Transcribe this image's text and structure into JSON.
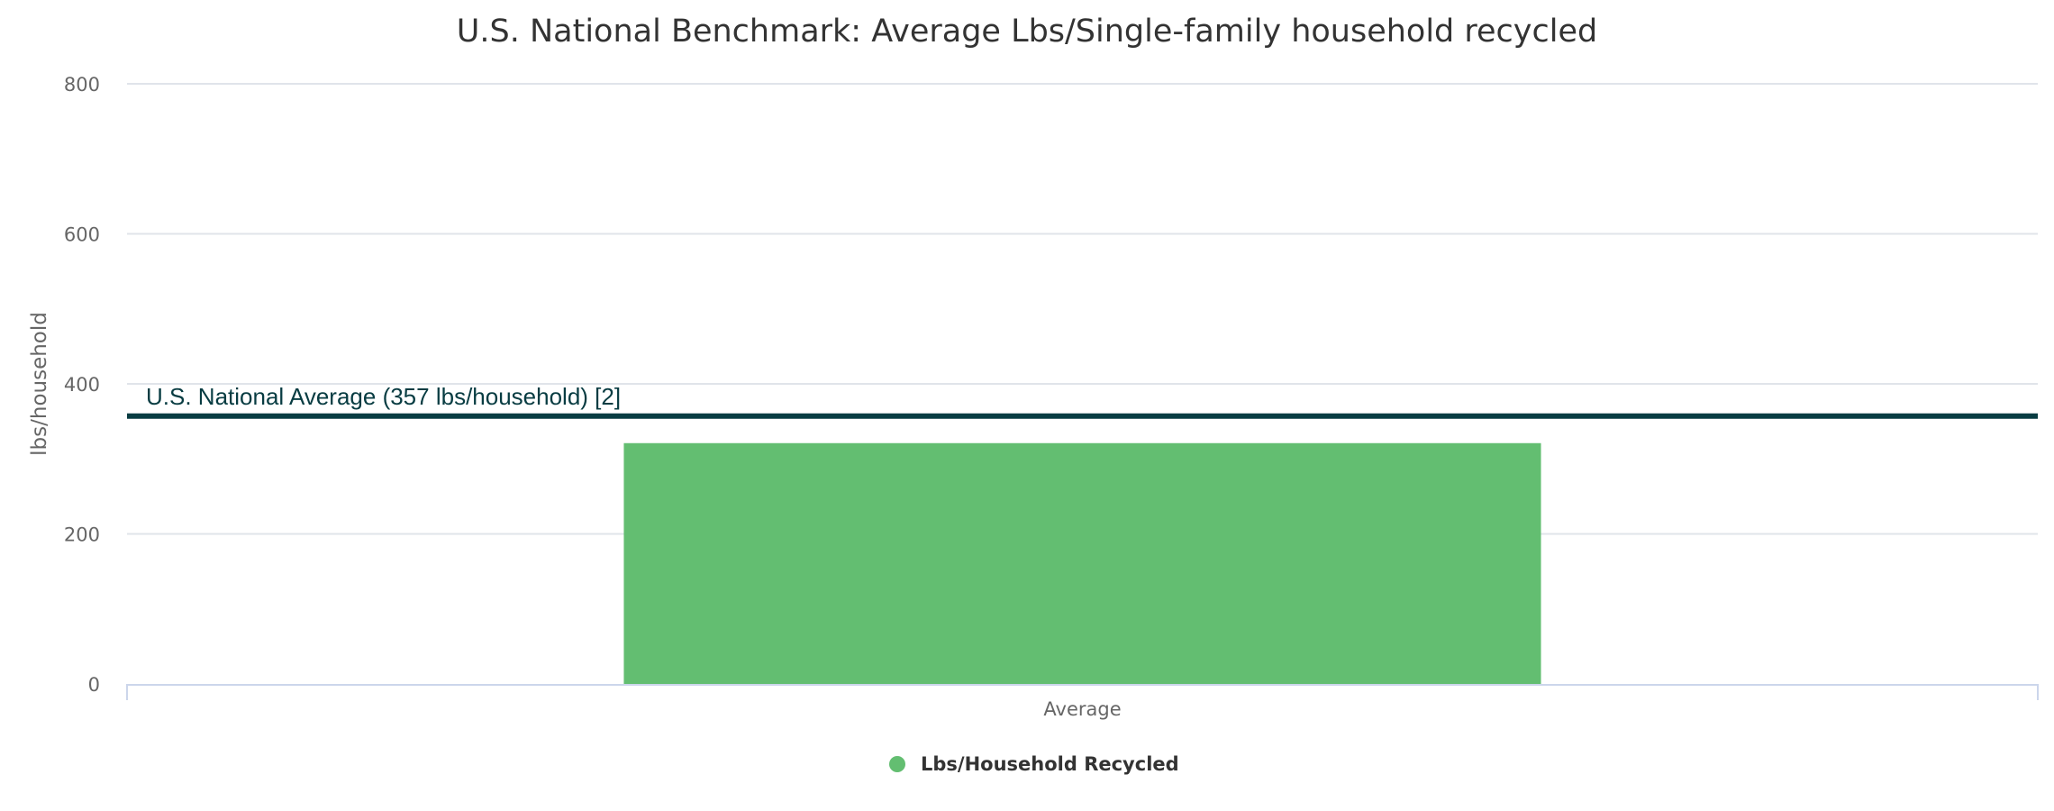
{
  "chart_data": {
    "type": "bar",
    "title": "U.S. National Benchmark: Average Lbs/Single-family household recycled",
    "ylabel": "lbs/household",
    "xlabel": "",
    "categories": [
      "Average"
    ],
    "series": [
      {
        "name": "Lbs/Household Recycled",
        "values": [
          321
        ],
        "color": "#63be71"
      }
    ],
    "ylim": [
      0,
      800
    ],
    "yticks": [
      0,
      200,
      400,
      600,
      800
    ],
    "grid": true,
    "legend": "bottom-center",
    "reference_line": {
      "value": 357,
      "label": "U.S. National Average (357 lbs/household) [2]",
      "color": "#083c42"
    }
  }
}
